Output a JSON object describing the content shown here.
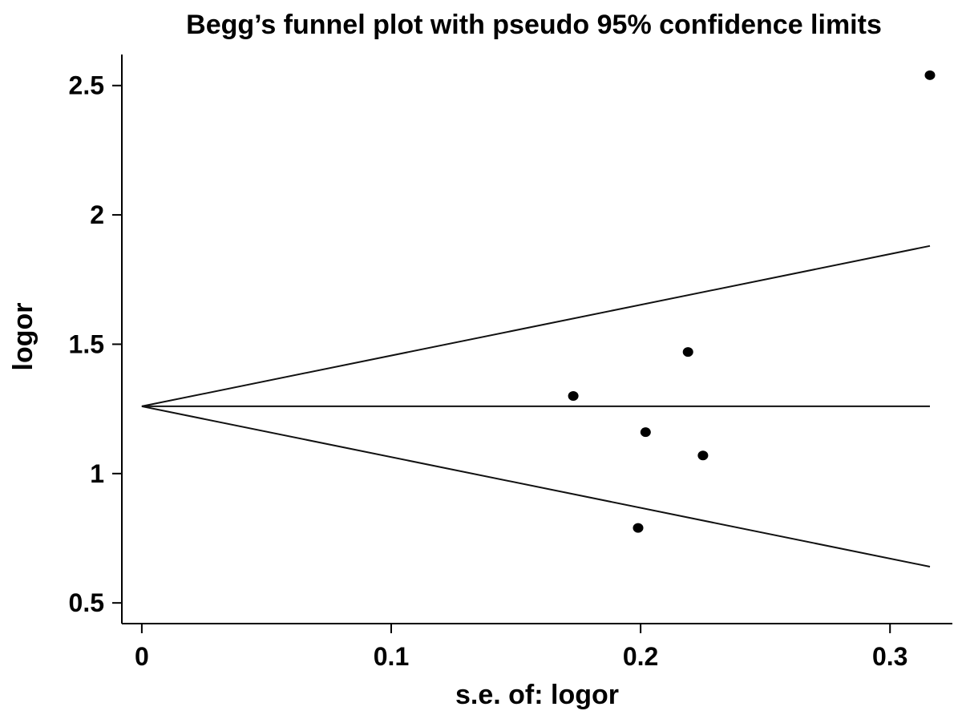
{
  "chart_data": {
    "type": "scatter",
    "title": "Begg’s funnel plot with pseudo 95% confidence limits",
    "xlabel": "s.e. of: logor",
    "ylabel": "logor",
    "xlim": [
      -0.008,
      0.325
    ],
    "ylim": [
      0.42,
      2.62
    ],
    "x_ticks": [
      {
        "value": 0,
        "label": "0"
      },
      {
        "value": 0.1,
        "label": "0.1"
      },
      {
        "value": 0.2,
        "label": "0.2"
      },
      {
        "value": 0.3,
        "label": "0.3"
      }
    ],
    "y_ticks": [
      {
        "value": 0.5,
        "label": "0.5"
      },
      {
        "value": 1,
        "label": "1"
      },
      {
        "value": 1.5,
        "label": "1.5"
      },
      {
        "value": 2,
        "label": "2"
      },
      {
        "value": 2.5,
        "label": "2.5"
      }
    ],
    "pooled_estimate": 1.26,
    "funnel_se_max": 0.316,
    "funnel_limits": {
      "upper": [
        [
          0,
          1.26
        ],
        [
          0.316,
          1.88
        ]
      ],
      "lower": [
        [
          0,
          1.26
        ],
        [
          0.316,
          0.64
        ]
      ]
    },
    "points": [
      {
        "x": 0.173,
        "y": 1.3
      },
      {
        "x": 0.199,
        "y": 0.79
      },
      {
        "x": 0.202,
        "y": 1.16
      },
      {
        "x": 0.219,
        "y": 1.47
      },
      {
        "x": 0.225,
        "y": 1.07
      },
      {
        "x": 0.316,
        "y": 2.54
      }
    ],
    "grid": false,
    "legend": "none"
  }
}
